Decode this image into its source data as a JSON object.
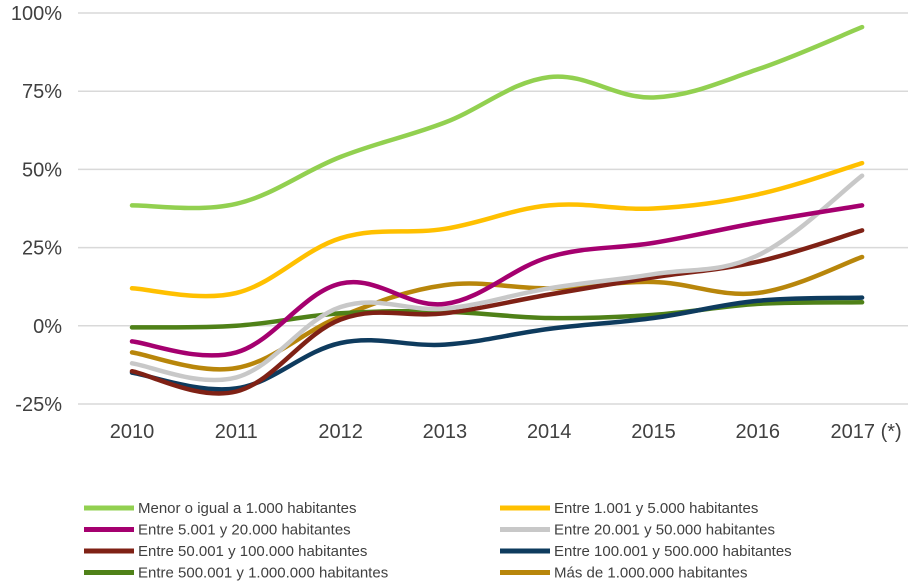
{
  "chart_data": {
    "type": "line",
    "categories": [
      "2010",
      "2011",
      "2012",
      "2013",
      "2014",
      "2015",
      "2016",
      "2017 (*)"
    ],
    "y_ticks": [
      "100%",
      "75%",
      "50%",
      "25%",
      "0%",
      "-25%"
    ],
    "ylim": [
      -25,
      100
    ],
    "grid": "horizontal",
    "legend_position": "bottom",
    "series": [
      {
        "name": "Menor o igual a 1.000 habitantes",
        "color": "#92d050",
        "values": [
          38.5,
          39,
          54,
          65,
          79.5,
          73,
          82,
          95.5
        ]
      },
      {
        "name": "Entre 1.001 y 5.000 habitantes",
        "color": "#ffc000",
        "values": [
          12,
          10.5,
          28,
          31,
          38.5,
          37.5,
          42,
          52
        ]
      },
      {
        "name": "Entre 5.001 y 20.000 habitantes",
        "color": "#a5006f",
        "values": [
          -5,
          -8.5,
          13.5,
          7,
          22,
          26.5,
          33,
          38.5
        ]
      },
      {
        "name": "Entre 20.001 y 50.000 habitantes",
        "color": "#c8c8c8",
        "values": [
          -12,
          -16.5,
          6,
          5.5,
          12,
          16.5,
          22.5,
          48
        ]
      },
      {
        "name": "Entre 50.001 y 100.000 habitantes",
        "color": "#7f2115",
        "values": [
          -14.5,
          -21,
          2,
          4,
          10,
          15.5,
          20.5,
          30.5
        ]
      },
      {
        "name": "Entre 100.001 y 500.000 habitantes",
        "color": "#0e3b5e",
        "values": [
          -15,
          -20,
          -5.5,
          -6,
          -1,
          2.5,
          8,
          9
        ]
      },
      {
        "name": "Entre 500.001 y 1.000.000 habitantes",
        "color": "#4f8118",
        "values": [
          -0.5,
          0,
          4,
          4.5,
          2.5,
          3.5,
          7,
          7.5
        ]
      },
      {
        "name": "Más de 1.000.000 habitantes",
        "color": "#b8860b",
        "values": [
          -8.5,
          -13.5,
          3,
          13,
          12,
          14,
          10.5,
          22
        ]
      }
    ]
  }
}
